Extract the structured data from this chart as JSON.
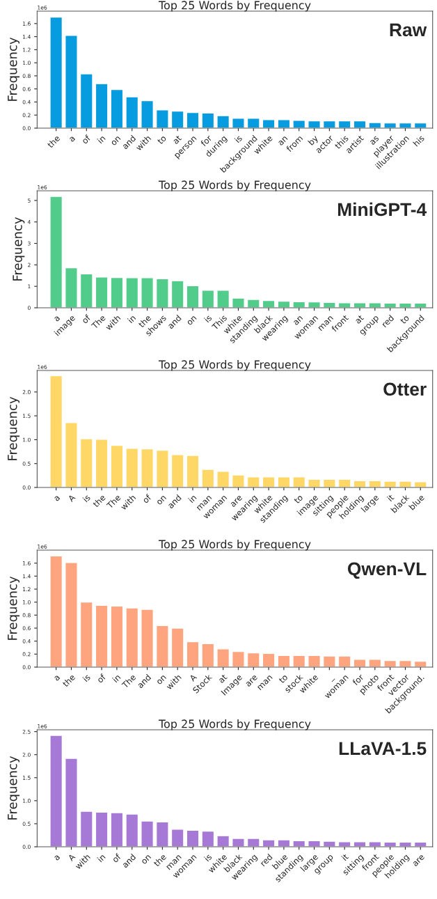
{
  "chart_data": [
    {
      "type": "bar",
      "title": "Top 25 Words by Frequency",
      "ylabel": "Frequency",
      "annotations": [
        "Raw",
        "1e6"
      ],
      "color": "#079ce0",
      "grid": false,
      "categories": [
        "the",
        "a",
        "of",
        "in",
        "on",
        "and",
        "with",
        "to",
        "at",
        "person",
        "for",
        "during",
        "is",
        "background",
        "white",
        "an",
        "from",
        "by",
        "actor",
        "this",
        "artist",
        "as",
        "player",
        "illustration",
        "his"
      ],
      "values": [
        1.7,
        1.42,
        0.83,
        0.68,
        0.59,
        0.48,
        0.42,
        0.28,
        0.26,
        0.24,
        0.23,
        0.19,
        0.15,
        0.15,
        0.13,
        0.13,
        0.12,
        0.11,
        0.11,
        0.11,
        0.11,
        0.085,
        0.08,
        0.08,
        0.08
      ],
      "ylim": [
        0,
        1.79
      ],
      "yticks": [
        {
          "value": 0,
          "label": "0.0"
        },
        0.2,
        0.4,
        0.6,
        0.8,
        {
          "value": 1,
          "label": "1.0"
        },
        1.2,
        1.4,
        1.6
      ]
    },
    {
      "type": "bar",
      "title": "Top 25 Words by Frequency",
      "ylabel": "Frequency",
      "annotations": [
        "MiniGPT-4",
        "1e6"
      ],
      "color": "#52cc8a",
      "grid": false,
      "categories": [
        "a",
        "image",
        "of",
        "The",
        "with",
        "in",
        "the",
        "shows",
        "and",
        "on",
        "is",
        "This",
        "white",
        "standing",
        "black",
        "wearing",
        "an",
        "woman",
        "man",
        "front",
        "at",
        "group",
        "red",
        "to",
        "background"
      ],
      "values": [
        5.19,
        1.86,
        1.58,
        1.43,
        1.41,
        1.4,
        1.4,
        1.35,
        1.26,
        1.03,
        0.82,
        0.82,
        0.45,
        0.39,
        0.34,
        0.31,
        0.28,
        0.27,
        0.25,
        0.23,
        0.23,
        0.23,
        0.22,
        0.22,
        0.22
      ],
      "ylim": [
        0,
        5.45
      ],
      "yticks": [
        0,
        1,
        2,
        3,
        4,
        5
      ]
    },
    {
      "type": "bar",
      "title": "Top 25 Words by Frequency",
      "ylabel": "Frequency",
      "annotations": [
        "Otter",
        "1e6"
      ],
      "color": "#fed766",
      "grid": false,
      "categories": [
        "a",
        "A",
        "is",
        "the",
        "The",
        "with",
        "of",
        "on",
        "and",
        "in",
        "man",
        "woman",
        "are",
        "wearing",
        "white",
        "standing",
        "to",
        "image",
        "sitting",
        "people",
        "holding",
        "large",
        "it",
        "black",
        "blue"
      ],
      "values": [
        2.34,
        1.36,
        1.02,
        1.01,
        0.88,
        0.82,
        0.81,
        0.78,
        0.69,
        0.67,
        0.38,
        0.34,
        0.26,
        0.22,
        0.22,
        0.22,
        0.22,
        0.17,
        0.17,
        0.17,
        0.14,
        0.14,
        0.13,
        0.13,
        0.12
      ],
      "ylim": [
        0,
        2.45
      ],
      "yticks": [
        {
          "value": 0,
          "label": "0.0"
        },
        0.5,
        {
          "value": 1,
          "label": "1.0"
        },
        1.5,
        {
          "value": 2,
          "label": "2.0"
        }
      ]
    },
    {
      "type": "bar",
      "title": "Top 25 Words by Frequency",
      "ylabel": "Frequency",
      "annotations": [
        "Qwen-VL",
        "1e6"
      ],
      "color": "#fea47f",
      "grid": false,
      "categories": [
        "a",
        "the",
        "is",
        "of",
        "in",
        "The",
        "and",
        "on",
        "with",
        "A",
        "Stock",
        "at",
        "Image",
        "are",
        "man",
        "to",
        "stock",
        "white",
        "_",
        "woman",
        "for",
        "photo",
        "front",
        "vector",
        "background."
      ],
      "values": [
        1.71,
        1.61,
        1.0,
        0.95,
        0.94,
        0.91,
        0.89,
        0.64,
        0.6,
        0.39,
        0.36,
        0.28,
        0.24,
        0.22,
        0.21,
        0.18,
        0.18,
        0.18,
        0.17,
        0.17,
        0.12,
        0.12,
        0.1,
        0.1,
        0.09
      ],
      "ylim": [
        0,
        1.8
      ],
      "yticks": [
        {
          "value": 0,
          "label": "0.0"
        },
        0.2,
        0.4,
        0.6,
        0.8,
        {
          "value": 1,
          "label": "1.0"
        },
        1.2,
        1.4,
        1.6
      ]
    },
    {
      "type": "bar",
      "title": "Top 25 Words by Frequency",
      "ylabel": "Frequency",
      "annotations": [
        "LLaVA-1.5",
        "1e6"
      ],
      "color": "#a679d6",
      "grid": false,
      "categories": [
        "a",
        "A",
        "with",
        "in",
        "of",
        "and",
        "on",
        "the",
        "man",
        "woman",
        "is",
        "white",
        "black",
        "wearing",
        "red",
        "blue",
        "standing",
        "large",
        "group",
        "it",
        "sitting",
        "front",
        "people",
        "holding",
        "are"
      ],
      "values": [
        2.42,
        1.92,
        0.77,
        0.75,
        0.74,
        0.71,
        0.56,
        0.54,
        0.38,
        0.36,
        0.34,
        0.24,
        0.18,
        0.18,
        0.15,
        0.15,
        0.13,
        0.13,
        0.12,
        0.11,
        0.11,
        0.11,
        0.1,
        0.1,
        0.1
      ],
      "ylim": [
        0,
        2.54
      ],
      "yticks": [
        {
          "value": 0,
          "label": "0.0"
        },
        0.5,
        {
          "value": 1,
          "label": "1.0"
        },
        1.5,
        {
          "value": 2,
          "label": "2.0"
        },
        2.5
      ]
    }
  ]
}
